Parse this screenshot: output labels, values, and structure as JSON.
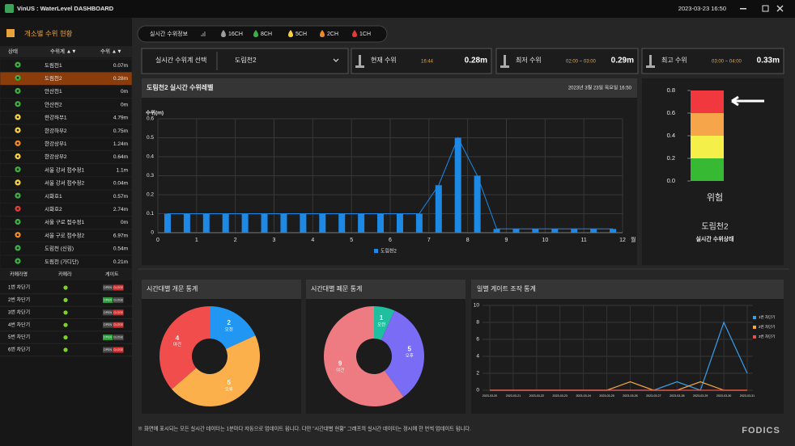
{
  "header": {
    "brand": "VinUS : WaterLevel DASHBOARD",
    "datetime": "2023-03-23 16:50"
  },
  "sidebar": {
    "title": "개소별 수위 현황",
    "columns": [
      "상태",
      "수위계 ▲▼",
      "수위 ▲▼"
    ],
    "rows": [
      {
        "name": "도림천1",
        "level": "0.07m",
        "color": "#3cb043"
      },
      {
        "name": "도림천2",
        "level": "0.28m",
        "color": "#3cb043",
        "selected": true
      },
      {
        "name": "안산천1",
        "level": "0m",
        "color": "#3cb043"
      },
      {
        "name": "안산천2",
        "level": "0m",
        "color": "#3cb043"
      },
      {
        "name": "한강하부1",
        "level": "4.79m",
        "color": "#f5d142"
      },
      {
        "name": "한강하부2",
        "level": "0.75m",
        "color": "#f5d142"
      },
      {
        "name": "한강상부1",
        "level": "1.24m",
        "color": "#f08a24"
      },
      {
        "name": "한강상부2",
        "level": "0.64m",
        "color": "#f5d142"
      },
      {
        "name": "서울 강서 접수정1",
        "level": "1.1m",
        "color": "#3cb043"
      },
      {
        "name": "서울 강서 접수정2",
        "level": "0.04m",
        "color": "#f5d142"
      },
      {
        "name": "시화호1",
        "level": "0.57m",
        "color": "#3cb043"
      },
      {
        "name": "시화호2",
        "level": "2.74m",
        "color": "#e53935"
      },
      {
        "name": "서울 구로 접수정1",
        "level": "0m",
        "color": "#3cb043"
      },
      {
        "name": "서울 구로 접수정2",
        "level": "6.97m",
        "color": "#f08a24"
      },
      {
        "name": "도림천 (신림)",
        "level": "0.54m",
        "color": "#3cb043"
      },
      {
        "name": "도림천 (가디단)",
        "level": "0.21m",
        "color": "#3cb043"
      }
    ]
  },
  "gates": {
    "columns": [
      "카메라명",
      "카메라",
      "게이트"
    ],
    "buttons": [
      "OPEN",
      "CLOSE"
    ],
    "rows": [
      {
        "name": "1번 차단기",
        "open": false
      },
      {
        "name": "2번 차단기",
        "open": true
      },
      {
        "name": "3번 차단기",
        "open": false
      },
      {
        "name": "4번 차단기",
        "open": false
      },
      {
        "name": "5번 차단기",
        "open": true
      },
      {
        "name": "6번 차단기",
        "open": false
      }
    ]
  },
  "status_bar": {
    "label": "실시간 수위정보",
    "channels": [
      {
        "name": "16CH",
        "color": "#9e9e9e"
      },
      {
        "name": "8CH",
        "color": "#3cb043"
      },
      {
        "name": "5CH",
        "color": "#f5d142"
      },
      {
        "name": "2CH",
        "color": "#f08a24"
      },
      {
        "name": "1CH",
        "color": "#e53935"
      }
    ]
  },
  "selector": {
    "label": "실시간 수위계 선택",
    "value": "도림천2"
  },
  "cards": [
    {
      "label": "현재 수위",
      "time": "16:44",
      "value": "0.28m"
    },
    {
      "label": "최저 수위",
      "time": "02:00 ~ 03:00",
      "value": "0.29m"
    },
    {
      "label": "최고 수위",
      "time": "03:00 ~ 04:00",
      "value": "0.33m"
    }
  ],
  "gauge": {
    "ylim": [
      0,
      0.8
    ],
    "yticks": [
      0.8,
      0.6,
      0.4,
      0.2,
      {
        "value": 0,
        "label": "0.0"
      }
    ],
    "colors": [
      "#f2383f",
      "#f7a54a",
      "#f5ef4a",
      "#37b933"
    ],
    "status": "위험",
    "station": "도림천2",
    "caption": "실시간 수위상태"
  },
  "chart_data": [
    {
      "type": "bar",
      "title": "도림천2 실시간 수위레벨",
      "date": "2023년 3월 23일 목요일 16:50",
      "y_label": "수위(m)",
      "x_label": "월",
      "x": [
        0.25,
        0.75,
        1.25,
        1.75,
        2.25,
        2.75,
        3.25,
        3.75,
        4.25,
        4.75,
        5.25,
        5.75,
        6.25,
        6.75,
        7.25,
        7.75,
        8.25,
        8.75,
        9.25,
        9.75,
        10.25,
        10.75,
        11.25,
        11.75
      ],
      "series": [
        {
          "name": "도림천2",
          "color": "#1e88e5",
          "values": [
            0.1,
            0.1,
            0.1,
            0.1,
            0.1,
            0.1,
            0.1,
            0.1,
            0.1,
            0.1,
            0.1,
            0.1,
            0.1,
            0.1,
            0.25,
            0.5,
            0.3,
            0.02,
            0.02,
            0.02,
            0.02,
            0.02,
            0.02,
            0.02
          ]
        }
      ],
      "xlim": [
        0,
        12
      ],
      "xticks": [
        0,
        1,
        2,
        3,
        4,
        5,
        6,
        7,
        8,
        9,
        10,
        11,
        12
      ],
      "ylim": [
        0,
        0.6
      ],
      "yticks": [
        0,
        0.1,
        0.2,
        0.3,
        0.4,
        0.5,
        0.6
      ],
      "grid": true
    },
    {
      "type": "pie",
      "title": "시간대별 개문 통계",
      "categories": [
        "오전",
        "오후",
        "야간"
      ],
      "values": [
        2,
        5,
        4
      ],
      "colors": [
        "#2196f3",
        "#fbb04c",
        "#f24d4d"
      ],
      "donut": true
    },
    {
      "type": "pie",
      "title": "시간대별 폐문 통계",
      "categories": [
        "오전",
        "오후",
        "야간"
      ],
      "values": [
        1,
        5,
        9
      ],
      "colors": [
        "#1fbfa0",
        "#7b6cf6",
        "#ee7b82"
      ],
      "donut": true
    },
    {
      "type": "line",
      "title": "일별 게이트 조작 통계",
      "x": [
        "2023-03-20",
        "2023-03-21",
        "2023-03-22",
        "2023-03-23",
        "2023-03-24",
        "2023-03-25",
        "2023-03-26",
        "2023-03-27",
        "2023-03-28",
        "2023-03-29",
        "2023-03-30",
        "2023-03-31"
      ],
      "series": [
        {
          "name": "1번 차단기",
          "color": "#3a9ee8",
          "values": [
            0,
            0,
            0,
            0,
            0,
            0,
            0,
            0,
            1,
            0,
            8,
            2
          ]
        },
        {
          "name": "2번 차단기",
          "color": "#f5a742",
          "values": [
            0,
            0,
            0,
            0,
            0,
            0,
            1,
            0,
            0,
            1,
            0,
            0
          ]
        },
        {
          "name": "3번 차단기",
          "color": "#e8504a",
          "values": [
            0,
            0,
            0,
            0,
            0,
            0,
            0,
            0,
            0,
            0,
            0,
            0
          ]
        }
      ],
      "ylim": [
        0,
        10
      ],
      "yticks": [
        0,
        2,
        4,
        6,
        8,
        10
      ],
      "grid": true,
      "legend": "upper right"
    }
  ],
  "footer": {
    "note": "※ 화면에 표시되는 모든 실시간 데이터는 1분마다 자동으로 업데이트 됩니다. 다만 \"시간대별 현황\" 그래프의 실시간 데이터는 정시에 한 번씩 업데이트 됩니다.",
    "logo": "FODICS"
  }
}
